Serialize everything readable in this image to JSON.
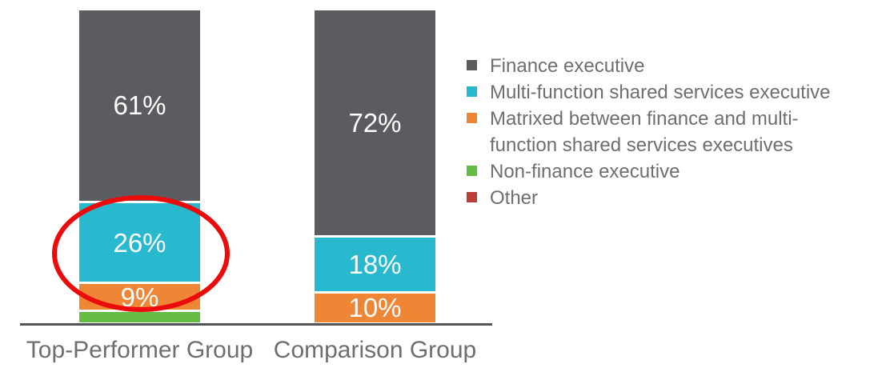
{
  "chart_data": {
    "type": "bar",
    "subtype": "stacked-column-100pct",
    "title": "",
    "xlabel": "",
    "ylabel": "",
    "ylim": [
      0,
      100
    ],
    "grid": false,
    "legend_position": "right",
    "categories": [
      "Top-Performer Group",
      "Comparison Group"
    ],
    "series": [
      {
        "name": "Finance executive",
        "color": "#5B5C5F",
        "values": [
          61,
          72
        ],
        "labels": [
          "61%",
          "72%"
        ]
      },
      {
        "name": "Multi-function shared services executive",
        "color": "#29B9CF",
        "values": [
          26,
          18
        ],
        "labels": [
          "26%",
          "18%"
        ]
      },
      {
        "name": "Matrixed between finance and multi-function shared services executives",
        "color": "#EF8636",
        "values": [
          9,
          10
        ],
        "labels": [
          "9%",
          "10%"
        ]
      },
      {
        "name": "Non-finance executive",
        "color": "#66BD45",
        "values": [
          4,
          0
        ],
        "labels": [
          "",
          ""
        ]
      },
      {
        "name": "Other",
        "color": "#BC3D36",
        "values": [
          0,
          0
        ],
        "labels": [
          "",
          ""
        ]
      }
    ],
    "annotation": {
      "type": "hand-drawn-ellipse",
      "color": "#EC0B0B",
      "highlights": "26% and 9% segments of Top-Performer Group bar"
    },
    "axis_line_color": "#545559",
    "label_text_color": "#6D6E71",
    "value_label_color": "#FFFFFF"
  }
}
